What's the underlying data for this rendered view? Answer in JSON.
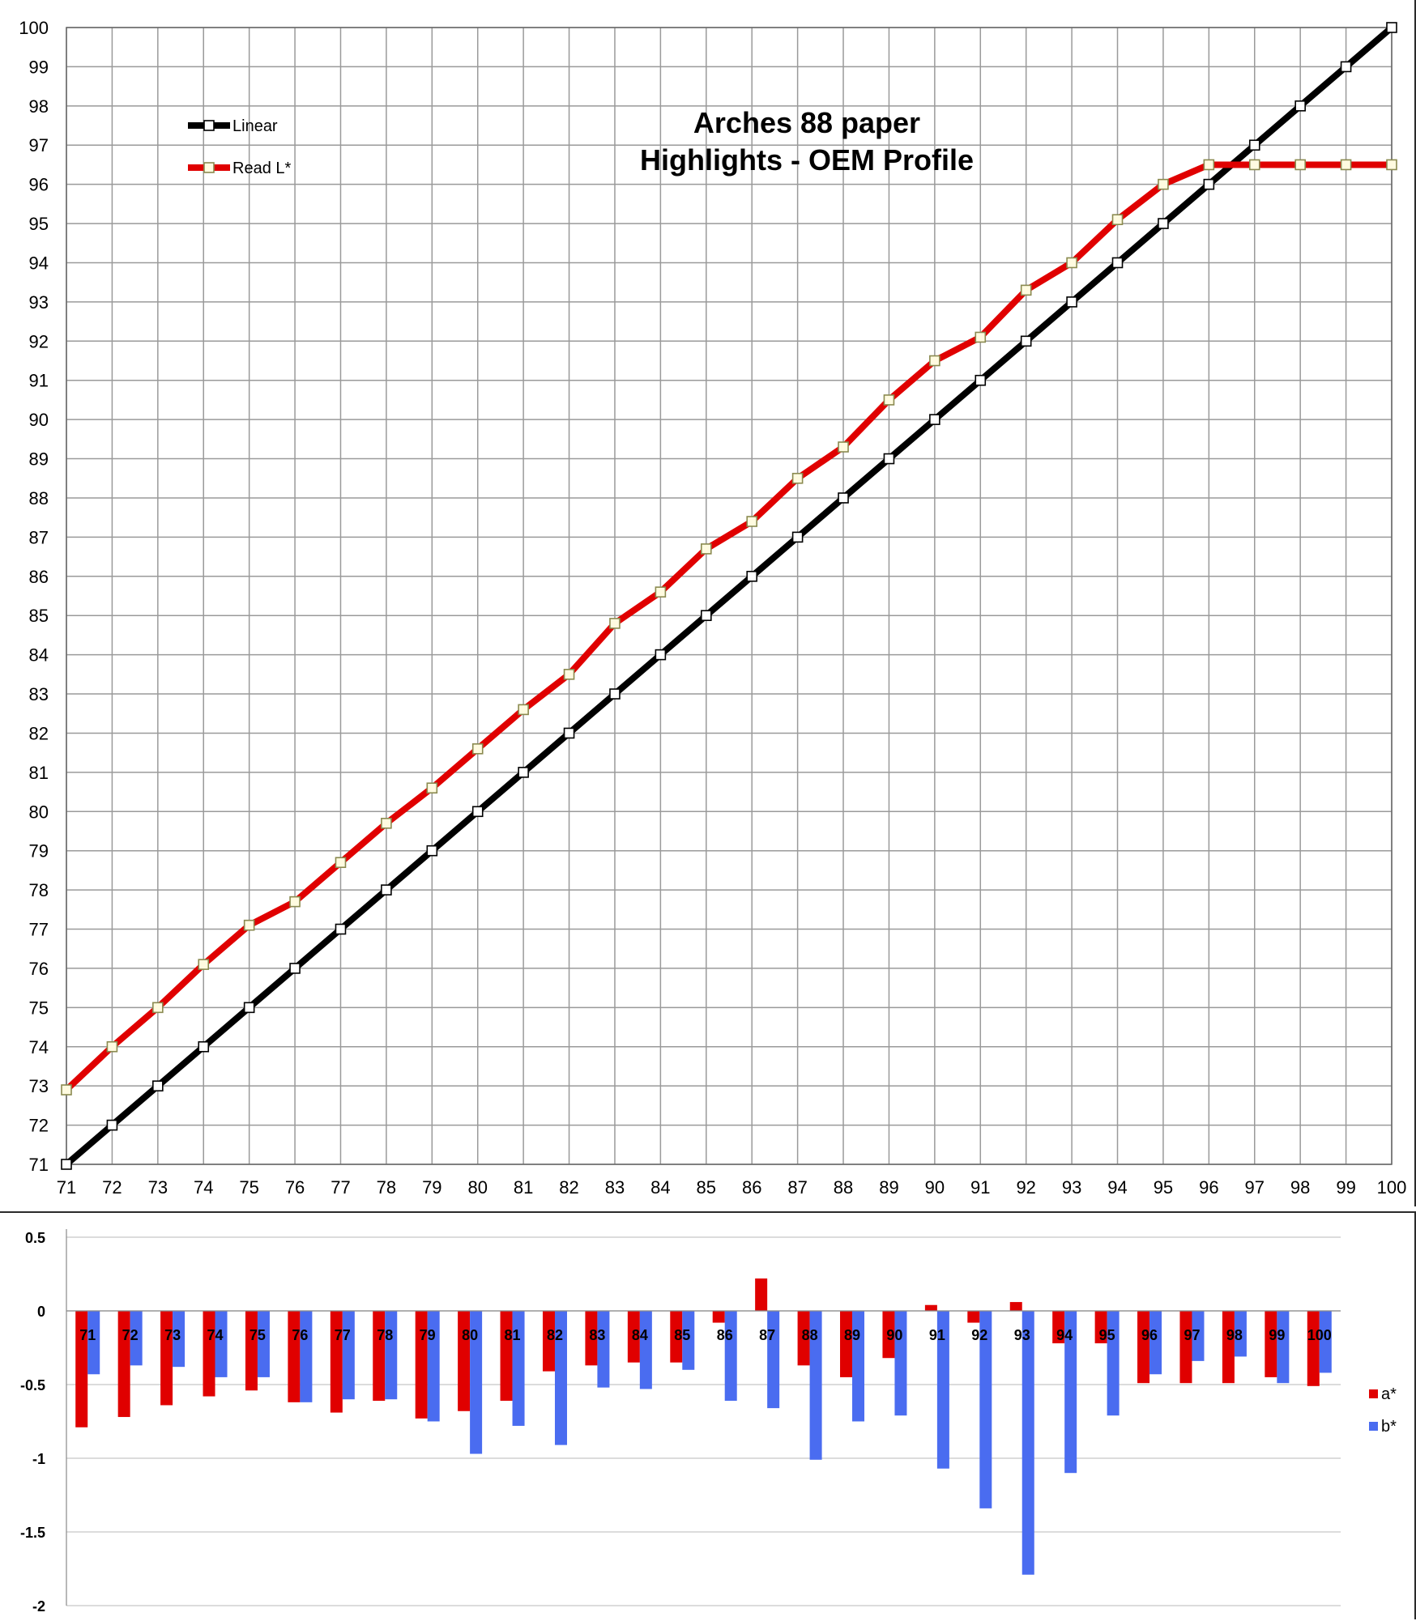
{
  "chart_data": [
    {
      "type": "line",
      "title": [
        "Arches 88 paper",
        "Highlights - OEM Profile"
      ],
      "xlabel": "",
      "ylabel": "",
      "xlim": [
        71,
        100
      ],
      "ylim": [
        71,
        100
      ],
      "grid": true,
      "legend_position": "top-left",
      "x": [
        71,
        72,
        73,
        74,
        75,
        76,
        77,
        78,
        79,
        80,
        81,
        82,
        83,
        84,
        85,
        86,
        87,
        88,
        89,
        90,
        91,
        92,
        93,
        94,
        95,
        96,
        97,
        98,
        99,
        100
      ],
      "series": [
        {
          "name": "Linear",
          "color": "#000000",
          "values": [
            71,
            72,
            73,
            74,
            75,
            76,
            77,
            78,
            79,
            80,
            81,
            82,
            83,
            84,
            85,
            86,
            87,
            88,
            89,
            90,
            91,
            92,
            93,
            94,
            95,
            96,
            97,
            98,
            99,
            100
          ]
        },
        {
          "name": "Read L*",
          "color": "#e00000",
          "values": [
            72.9,
            74.0,
            75.0,
            76.1,
            77.1,
            77.7,
            78.7,
            79.7,
            80.6,
            81.6,
            82.6,
            83.5,
            84.8,
            85.6,
            86.7,
            87.4,
            88.5,
            89.3,
            90.5,
            91.5,
            92.1,
            93.3,
            94.0,
            95.1,
            96.0,
            96.5,
            96.5,
            96.5,
            96.5,
            96.5
          ]
        }
      ]
    },
    {
      "type": "bar",
      "xlabel": "",
      "ylabel": "",
      "ylim": [
        -2,
        0.5
      ],
      "y_ticks": [
        "0.5",
        "0",
        "-0.5",
        "-1",
        "-1.5",
        "-2"
      ],
      "grid": true,
      "legend_position": "right",
      "categories": [
        "71",
        "72",
        "73",
        "74",
        "75",
        "76",
        "77",
        "78",
        "79",
        "80",
        "81",
        "82",
        "83",
        "84",
        "85",
        "86",
        "87",
        "88",
        "89",
        "90",
        "91",
        "92",
        "93",
        "94",
        "95",
        "96",
        "97",
        "98",
        "99",
        "100"
      ],
      "series": [
        {
          "name": "a*",
          "color": "#e00000",
          "values": [
            -0.79,
            -0.72,
            -0.64,
            -0.58,
            -0.54,
            -0.62,
            -0.69,
            -0.61,
            -0.73,
            -0.68,
            -0.61,
            -0.41,
            -0.37,
            -0.35,
            -0.35,
            -0.08,
            0.22,
            -0.37,
            -0.45,
            -0.32,
            0.04,
            -0.08,
            0.06,
            -0.22,
            -0.22,
            -0.49,
            -0.49,
            -0.49,
            -0.45,
            -0.51
          ]
        },
        {
          "name": "b*",
          "color": "#4a6cf0",
          "values": [
            -0.43,
            -0.37,
            -0.38,
            -0.45,
            -0.45,
            -0.62,
            -0.6,
            -0.6,
            -0.75,
            -0.97,
            -0.78,
            -0.91,
            -0.52,
            -0.53,
            -0.4,
            -0.61,
            -0.66,
            -1.01,
            -0.75,
            -0.71,
            -1.07,
            -1.34,
            -1.79,
            -1.1,
            -0.71,
            -0.43,
            -0.34,
            -0.31,
            -0.49,
            -0.42
          ]
        }
      ]
    }
  ]
}
